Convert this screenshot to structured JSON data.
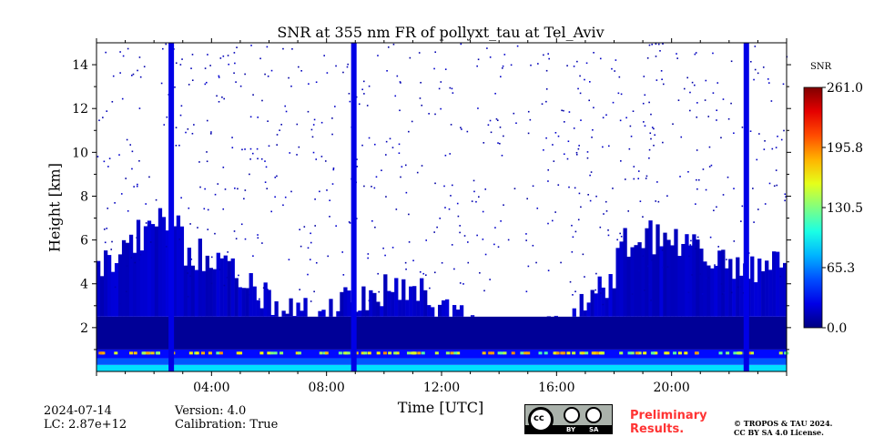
{
  "chart_data": {
    "type": "heatmap",
    "title": "SNR at 355 nm FR of pollyxt_tau at Tel_Aviv",
    "xlabel": "Time [UTC]",
    "ylabel": "Height [km]",
    "xlim": [
      0,
      24
    ],
    "ylim": [
      0,
      15
    ],
    "x_ticks": [
      4,
      8,
      12,
      16,
      20
    ],
    "x_tick_labels": [
      "04:00",
      "08:00",
      "12:00",
      "16:00",
      "20:00"
    ],
    "y_ticks": [
      2,
      4,
      6,
      8,
      10,
      12,
      14
    ],
    "y_tick_labels": [
      "2",
      "4",
      "6",
      "8",
      "10",
      "12",
      "14"
    ],
    "colorbar": {
      "label": "SNR",
      "min": 0.0,
      "max": 261.0,
      "ticks": [
        0.0,
        65.3,
        130.5,
        195.8,
        261.0
      ],
      "tick_labels": [
        "0.0",
        "65.3",
        "130.5",
        "195.8",
        "261.0"
      ],
      "colormap": "jet"
    },
    "signal_bands_km": [
      {
        "from": 0.0,
        "to": 0.3,
        "snr": 90
      },
      {
        "from": 0.3,
        "to": 0.6,
        "snr": 55
      },
      {
        "from": 0.6,
        "to": 1.0,
        "snr": 35
      },
      {
        "from": 1.0,
        "to": 2.5,
        "snr": 6
      }
    ],
    "dropout_times_utc": [
      2.6,
      8.95,
      22.6
    ]
  },
  "footer": {
    "date": "2024-07-14",
    "lc": "LC: 2.87e+12",
    "version": "Version: 4.0",
    "calibration": "Calibration: True",
    "license_by": "BY",
    "license_sa": "SA",
    "preliminary_1": "Preliminary",
    "preliminary_2": "Results.",
    "copyright_1": "© TROPOS & TAU 2024.",
    "copyright_2": "CC BY SA 4.0 License."
  }
}
